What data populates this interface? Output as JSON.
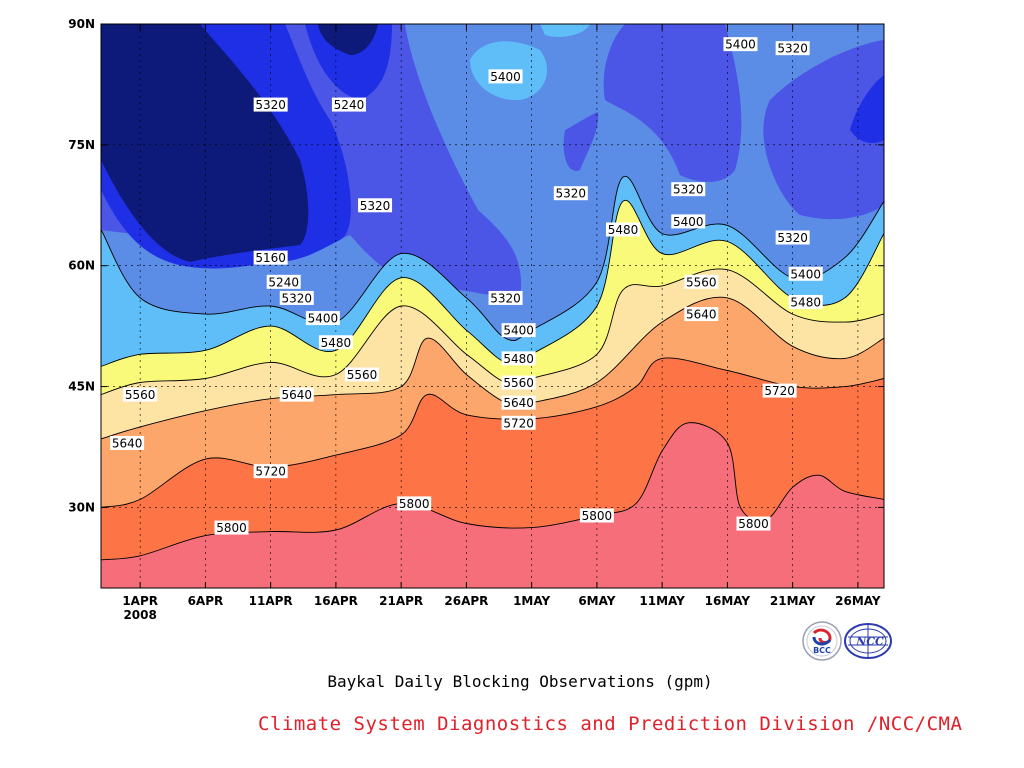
{
  "chart_data": {
    "type": "heatmap",
    "title": "Baykal Daily Blocking Observations (gpm)",
    "credit": "Climate System Diagnostics and Prediction Division /NCC/CMA",
    "x_ticks": [
      {
        "date": "2008-04-01",
        "label": "1APR",
        "sublabel": "2008"
      },
      {
        "date": "2008-04-06",
        "label": "6APR"
      },
      {
        "date": "2008-04-11",
        "label": "11APR"
      },
      {
        "date": "2008-04-16",
        "label": "16APR"
      },
      {
        "date": "2008-04-21",
        "label": "21APR"
      },
      {
        "date": "2008-04-26",
        "label": "26APR"
      },
      {
        "date": "2008-05-01",
        "label": "1MAY"
      },
      {
        "date": "2008-05-06",
        "label": "6MAY"
      },
      {
        "date": "2008-05-11",
        "label": "11MAY"
      },
      {
        "date": "2008-05-16",
        "label": "16MAY"
      },
      {
        "date": "2008-05-21",
        "label": "21MAY"
      },
      {
        "date": "2008-05-26",
        "label": "26MAY"
      }
    ],
    "y_ticks": [
      {
        "lat": 30,
        "label": "30N"
      },
      {
        "lat": 45,
        "label": "45N"
      },
      {
        "lat": 60,
        "label": "60N"
      },
      {
        "lat": 75,
        "label": "75N"
      },
      {
        "lat": 90,
        "label": "90N"
      }
    ],
    "xlim": [
      "2008-03-29",
      "2008-05-28"
    ],
    "ylim": [
      20,
      90
    ],
    "grid": true,
    "contour_levels": [
      5160,
      5240,
      5320,
      5400,
      5480,
      5560,
      5640,
      5720,
      5800
    ],
    "colors": [
      "#0d1a7a",
      "#1e2fe6",
      "#4b55e6",
      "#5b8ce6",
      "#5fbef7",
      "#f9f97a",
      "#fde3a4",
      "#fda66b",
      "#fd7446",
      "#f56e7a"
    ],
    "contour_lines": [
      {
        "value": 5800,
        "points": [
          [
            "2008-03-29",
            23.5
          ],
          [
            "2008-04-01",
            24
          ],
          [
            "2008-04-06",
            26.5
          ],
          [
            "2008-04-11",
            27
          ],
          [
            "2008-04-16",
            27.2
          ],
          [
            "2008-04-21",
            30.5
          ],
          [
            "2008-04-26",
            28
          ],
          [
            "2008-05-01",
            27.5
          ],
          [
            "2008-05-06",
            29
          ],
          [
            "2008-05-09",
            30.5
          ],
          [
            "2008-05-11",
            37
          ],
          [
            "2008-05-13",
            40.5
          ],
          [
            "2008-05-16",
            38
          ],
          [
            "2008-05-17",
            30
          ],
          [
            "2008-05-19",
            28.5
          ],
          [
            "2008-05-21",
            32.5
          ],
          [
            "2008-05-23",
            34
          ],
          [
            "2008-05-25",
            32
          ],
          [
            "2008-05-28",
            31
          ]
        ]
      },
      {
        "value": 5720,
        "points": [
          [
            "2008-03-29",
            30
          ],
          [
            "2008-04-01",
            31
          ],
          [
            "2008-04-06",
            36
          ],
          [
            "2008-04-11",
            35
          ],
          [
            "2008-04-16",
            36.5
          ],
          [
            "2008-04-21",
            39
          ],
          [
            "2008-04-23",
            44
          ],
          [
            "2008-04-26",
            41.5
          ],
          [
            "2008-05-01",
            41
          ],
          [
            "2008-05-06",
            42.5
          ],
          [
            "2008-05-09",
            45
          ],
          [
            "2008-05-11",
            48.5
          ],
          [
            "2008-05-16",
            47
          ],
          [
            "2008-05-21",
            45
          ],
          [
            "2008-05-25",
            45
          ],
          [
            "2008-05-28",
            46
          ]
        ]
      },
      {
        "value": 5640,
        "points": [
          [
            "2008-03-29",
            38.5
          ],
          [
            "2008-04-01",
            40
          ],
          [
            "2008-04-06",
            42
          ],
          [
            "2008-04-11",
            43.5
          ],
          [
            "2008-04-16",
            44
          ],
          [
            "2008-04-21",
            45
          ],
          [
            "2008-04-23",
            51
          ],
          [
            "2008-04-26",
            46.5
          ],
          [
            "2008-04-29",
            43
          ],
          [
            "2008-05-01",
            43
          ],
          [
            "2008-05-06",
            45.5
          ],
          [
            "2008-05-11",
            53
          ],
          [
            "2008-05-16",
            56
          ],
          [
            "2008-05-21",
            50
          ],
          [
            "2008-05-25",
            48.5
          ],
          [
            "2008-05-28",
            51
          ]
        ]
      },
      {
        "value": 5560,
        "points": [
          [
            "2008-03-29",
            44
          ],
          [
            "2008-04-01",
            45.5
          ],
          [
            "2008-04-06",
            46
          ],
          [
            "2008-04-11",
            48
          ],
          [
            "2008-04-16",
            46.5
          ],
          [
            "2008-04-21",
            55
          ],
          [
            "2008-04-26",
            49
          ],
          [
            "2008-04-29",
            45.5
          ],
          [
            "2008-05-01",
            46
          ],
          [
            "2008-05-06",
            49
          ],
          [
            "2008-05-08",
            57
          ],
          [
            "2008-05-11",
            57.5
          ],
          [
            "2008-05-16",
            59.5
          ],
          [
            "2008-05-21",
            54
          ],
          [
            "2008-05-25",
            53
          ],
          [
            "2008-05-28",
            54
          ]
        ]
      },
      {
        "value": 5480,
        "points": [
          [
            "2008-03-29",
            47.5
          ],
          [
            "2008-04-01",
            49
          ],
          [
            "2008-04-06",
            49.5
          ],
          [
            "2008-04-11",
            52.5
          ],
          [
            "2008-04-16",
            49.5
          ],
          [
            "2008-04-21",
            58.5
          ],
          [
            "2008-04-26",
            52
          ],
          [
            "2008-04-29",
            48
          ],
          [
            "2008-05-01",
            49
          ],
          [
            "2008-05-06",
            55
          ],
          [
            "2008-05-08",
            68
          ],
          [
            "2008-05-11",
            61.5
          ],
          [
            "2008-05-16",
            63
          ],
          [
            "2008-05-21",
            56
          ],
          [
            "2008-05-25",
            56
          ],
          [
            "2008-05-28",
            64
          ]
        ]
      },
      {
        "value": 5400,
        "points": [
          [
            "2008-03-29",
            64.5
          ],
          [
            "2008-04-01",
            56
          ],
          [
            "2008-04-06",
            54
          ],
          [
            "2008-04-11",
            55
          ],
          [
            "2008-04-16",
            53
          ],
          [
            "2008-04-21",
            61.5
          ],
          [
            "2008-04-26",
            56
          ],
          [
            "2008-04-29",
            51
          ],
          [
            "2008-05-01",
            52
          ],
          [
            "2008-05-06",
            58
          ],
          [
            "2008-05-08",
            71
          ],
          [
            "2008-05-11",
            64
          ],
          [
            "2008-05-16",
            65
          ],
          [
            "2008-05-21",
            58.5
          ],
          [
            "2008-05-25",
            61
          ],
          [
            "2008-05-28",
            68
          ]
        ]
      }
    ],
    "contour_labels": [
      {
        "value": 5320,
        "date": "2008-04-11",
        "lat": 80
      },
      {
        "value": 5240,
        "date": "2008-04-17",
        "lat": 80
      },
      {
        "value": 5320,
        "date": "2008-04-19",
        "lat": 67.5
      },
      {
        "value": 5160,
        "date": "2008-04-11",
        "lat": 61
      },
      {
        "value": 5240,
        "date": "2008-04-12",
        "lat": 58
      },
      {
        "value": 5320,
        "date": "2008-04-13",
        "lat": 56
      },
      {
        "value": 5400,
        "date": "2008-04-15",
        "lat": 53.5
      },
      {
        "value": 5480,
        "date": "2008-04-16",
        "lat": 50.5
      },
      {
        "value": 5560,
        "date": "2008-04-18",
        "lat": 46.5
      },
      {
        "value": 5640,
        "date": "2008-04-13",
        "lat": 44
      },
      {
        "value": 5560,
        "date": "2008-04-01",
        "lat": 44
      },
      {
        "value": 5640,
        "date": "2008-03-31",
        "lat": 38
      },
      {
        "value": 5720,
        "date": "2008-04-11",
        "lat": 34.5
      },
      {
        "value": 5800,
        "date": "2008-04-08",
        "lat": 27.5
      },
      {
        "value": 5800,
        "date": "2008-04-22",
        "lat": 30.5
      },
      {
        "value": 5400,
        "date": "2008-04-29",
        "lat": 83.5
      },
      {
        "value": 5320,
        "date": "2008-05-04",
        "lat": 69
      },
      {
        "value": 5480,
        "date": "2008-05-08",
        "lat": 64.5
      },
      {
        "value": 5320,
        "date": "2008-05-13",
        "lat": 69.5
      },
      {
        "value": 5400,
        "date": "2008-05-13",
        "lat": 65.5
      },
      {
        "value": 5400,
        "date": "2008-05-17",
        "lat": 87.5
      },
      {
        "value": 5320,
        "date": "2008-05-21",
        "lat": 87
      },
      {
        "value": 5320,
        "date": "2008-04-29",
        "lat": 56
      },
      {
        "value": 5400,
        "date": "2008-04-30",
        "lat": 52
      },
      {
        "value": 5480,
        "date": "2008-04-30",
        "lat": 48.5
      },
      {
        "value": 5560,
        "date": "2008-04-30",
        "lat": 45.5
      },
      {
        "value": 5640,
        "date": "2008-04-30",
        "lat": 43
      },
      {
        "value": 5720,
        "date": "2008-04-30",
        "lat": 40.5
      },
      {
        "value": 5800,
        "date": "2008-05-06",
        "lat": 29
      },
      {
        "value": 5560,
        "date": "2008-05-14",
        "lat": 58
      },
      {
        "value": 5640,
        "date": "2008-05-14",
        "lat": 54
      },
      {
        "value": 5320,
        "date": "2008-05-21",
        "lat": 63.5
      },
      {
        "value": 5400,
        "date": "2008-05-22",
        "lat": 59
      },
      {
        "value": 5480,
        "date": "2008-05-22",
        "lat": 55.5
      },
      {
        "value": 5720,
        "date": "2008-05-20",
        "lat": 44.5
      },
      {
        "value": 5800,
        "date": "2008-05-18",
        "lat": 28
      }
    ]
  },
  "logos": [
    {
      "name": "bcc-logo",
      "text": "BCC"
    },
    {
      "name": "ncc-logo",
      "text": "NCC"
    }
  ]
}
